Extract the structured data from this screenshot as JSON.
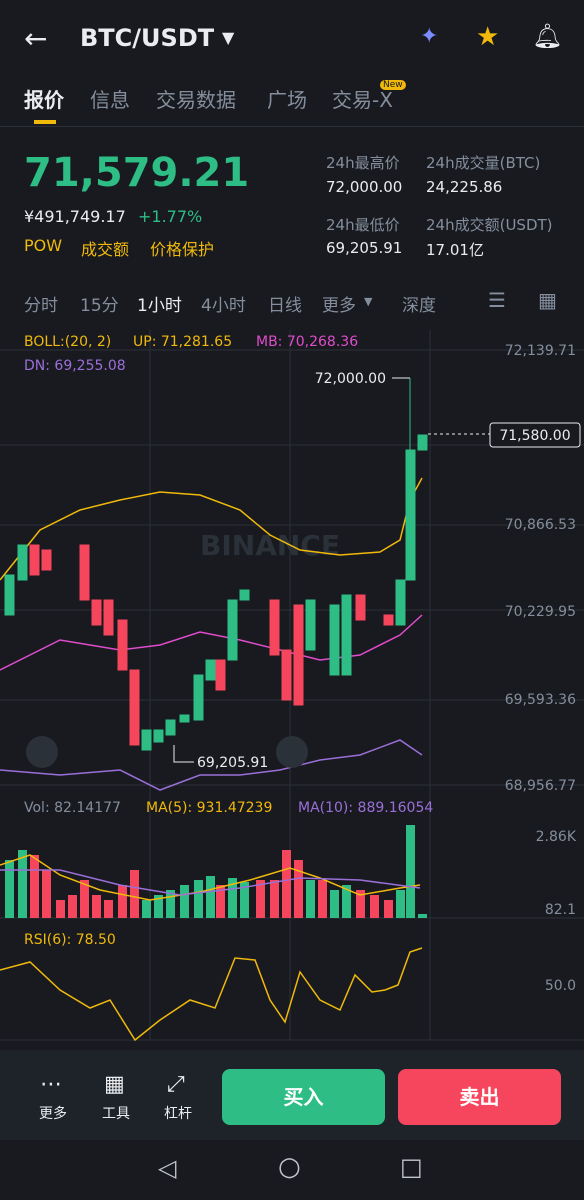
{
  "header": {
    "pair": "BTC/USDT"
  },
  "tabs": {
    "items": [
      "报价",
      "信息",
      "交易数据",
      "广场",
      "交易-X"
    ],
    "badge": "New"
  },
  "price": {
    "last": "71,579.21",
    "cny": "¥491,749.17",
    "change": "+1.77%",
    "tags": [
      "POW",
      "成交额",
      "价格保护"
    ]
  },
  "stats": [
    {
      "label": "24h最高价",
      "value": "72,000.00"
    },
    {
      "label": "24h成交量(BTC)",
      "value": "24,225.86"
    },
    {
      "label": "24h最低价",
      "value": "69,205.91"
    },
    {
      "label": "24h成交额(USDT)",
      "value": "17.01亿"
    }
  ],
  "intervals": [
    "分时",
    "15分",
    "1小时",
    "4小时",
    "日线",
    "更多",
    "深度"
  ],
  "chart": {
    "boll": "BOLL:(20, 2)",
    "up": "UP: 71,281.65",
    "mb": "MB: 70,268.36",
    "dn": "DN: 69,255.08",
    "axis": [
      "72,139.71",
      "70,866.53",
      "70,229.95",
      "69,593.36",
      "68,956.77"
    ],
    "current": "71,580.00",
    "high": "72,000.00",
    "low": "69,205.91",
    "watermark": "BINANCE"
  },
  "volume": {
    "vol": "Vol: 82.14177",
    "ma5": "MA(5): 931.47239",
    "ma10": "MA(10): 889.16054",
    "axis": [
      "2.86K",
      "82.1"
    ]
  },
  "rsi": {
    "label": "RSI(6): 78.50",
    "axis": "50.0"
  },
  "bottom": {
    "tools": [
      "更多",
      "工具",
      "杠杆"
    ],
    "buy": "买入",
    "sell": "卖出"
  }
}
